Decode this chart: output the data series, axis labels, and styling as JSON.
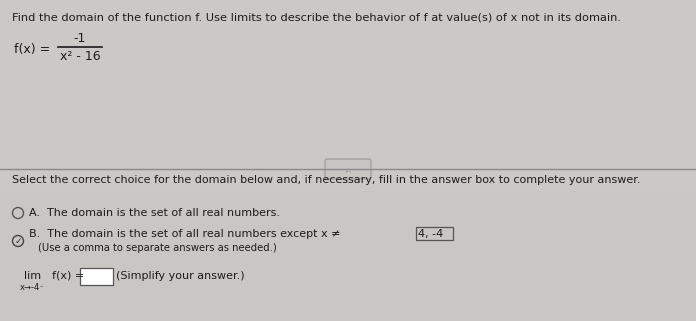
{
  "bg_color": "#cac8c5",
  "top_bg": "#cac8c5",
  "bottom_bg": "#c8c6c3",
  "title_text": "Find the domain of the function f. Use limits to describe the behavior of f at value(s) of x not in its domain.",
  "function_label": "f(x) =",
  "numerator": "-1",
  "denominator": "x² - 16",
  "divider_button_text": "...",
  "select_text": "Select the correct choice for the domain below and, if necessary, fill in the answer box to complete your answer.",
  "option_a_text": "The domain is the set of all real numbers.",
  "option_b_line1_pre": "The domain is the set of all real numbers except x ≠ ",
  "option_b_highlighted": "4, -4",
  "option_b_line2": "(Use a comma to separate answers as needed.)",
  "limit_prefix": "lim",
  "limit_eq": "f(x) =",
  "limit_suffix": "(Simplify your answer.)",
  "limit_subscript": "x→-4⁻",
  "font_color": "#1c1c1c",
  "line_color": "#888888",
  "circle_color": "#555555",
  "title_fontsize": 8.2,
  "body_fontsize": 8.0,
  "small_fontsize": 7.2
}
